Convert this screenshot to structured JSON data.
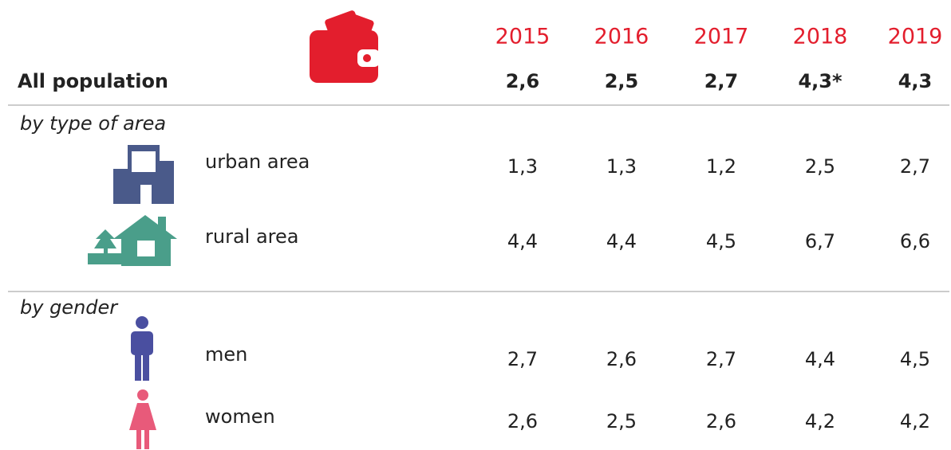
{
  "table": {
    "years": [
      "2015",
      "2016",
      "2017",
      "2018",
      "2019"
    ],
    "total": {
      "label": "All population",
      "values": [
        "2,6",
        "2,5",
        "2,7",
        "4,3*",
        "4,3"
      ]
    },
    "groups": [
      {
        "title": "by type of area",
        "rows": [
          {
            "label": "urban area",
            "values": [
              "1,3",
              "1,3",
              "1,2",
              "2,5",
              "2,7"
            ]
          },
          {
            "label": "rural area",
            "values": [
              "4,4",
              "4,4",
              "4,5",
              "6,7",
              "6,6"
            ]
          }
        ]
      },
      {
        "title": "by gender",
        "rows": [
          {
            "label": "men",
            "values": [
              "2,7",
              "2,6",
              "2,7",
              "4,4",
              "4,5"
            ]
          },
          {
            "label": "women",
            "values": [
              "2,6",
              "2,5",
              "2,6",
              "4,2",
              "4,2"
            ]
          }
        ]
      }
    ]
  }
}
